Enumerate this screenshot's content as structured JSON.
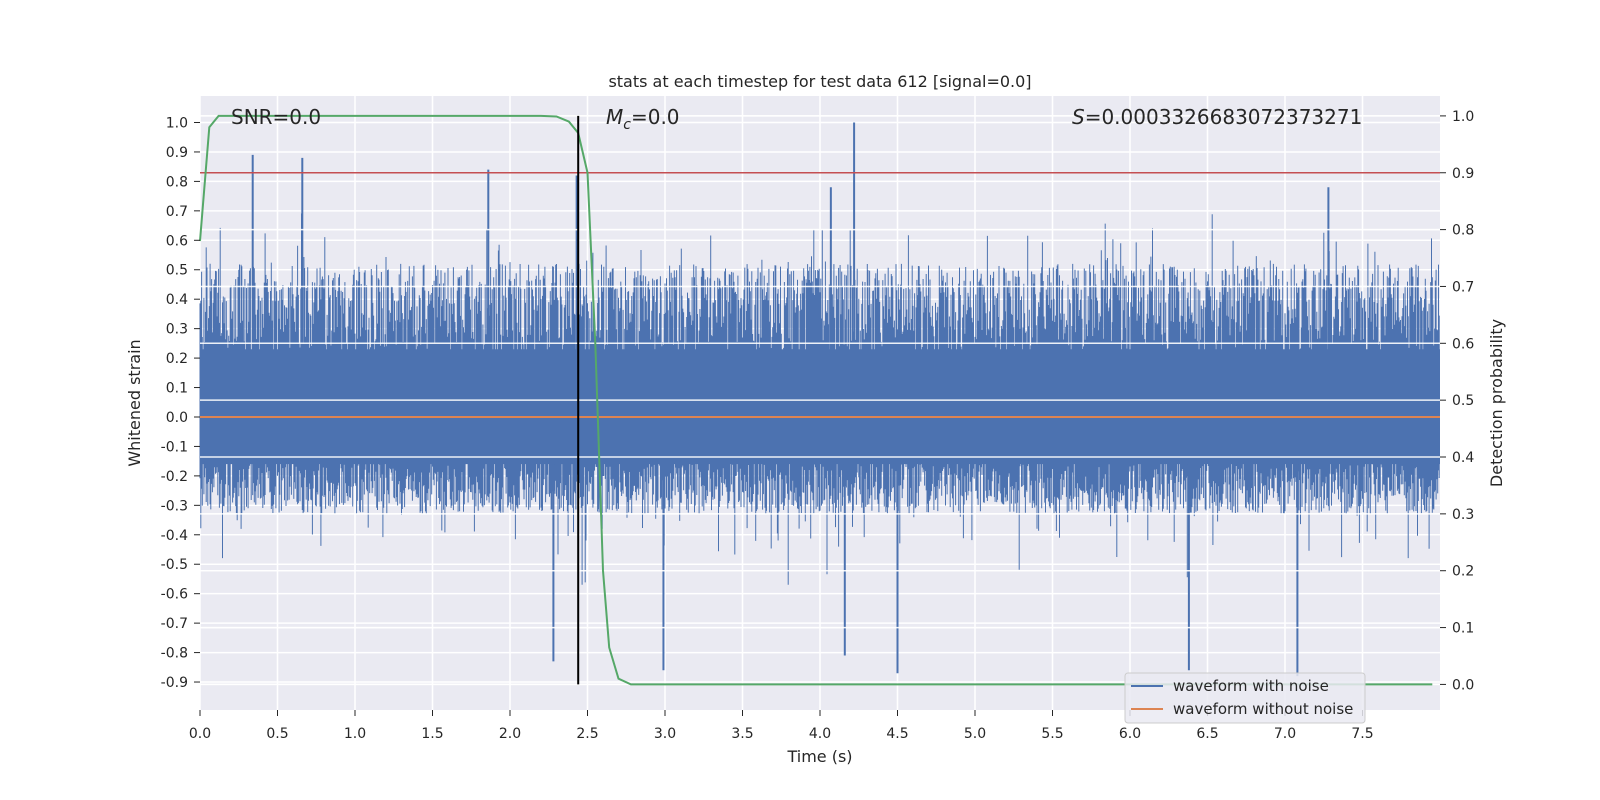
{
  "chart_data": {
    "type": "line",
    "title": "stats at each timestep for test data 612 [signal=0.0]",
    "xlabel": "Time (s)",
    "ylabel": "Whitened strain",
    "y2label": "Detection probability",
    "xlim": [
      0.0,
      8.0
    ],
    "ylim": [
      -0.995,
      1.09
    ],
    "y2lim": [
      -0.045,
      1.035
    ],
    "xticks": [
      "0.0",
      "0.5",
      "1.0",
      "1.5",
      "2.0",
      "2.5",
      "3.0",
      "3.5",
      "4.0",
      "4.5",
      "5.0",
      "5.5",
      "6.0",
      "6.5",
      "7.0",
      "7.5"
    ],
    "yticks": [
      "-0.9",
      "-0.8",
      "-0.7",
      "-0.6",
      "-0.5",
      "-0.4",
      "-0.3",
      "-0.2",
      "-0.1",
      "0.0",
      "0.1",
      "0.2",
      "0.3",
      "0.4",
      "0.5",
      "0.6",
      "0.7",
      "0.8",
      "0.9",
      "1.0"
    ],
    "y2ticks": [
      "0.0",
      "0.1",
      "0.2",
      "0.3",
      "0.4",
      "0.5",
      "0.6",
      "0.7",
      "0.8",
      "0.9",
      "1.0"
    ],
    "annotations": {
      "snr": "SNR=0.0",
      "mc_symbol": "M",
      "mc_sub": "c",
      "mc_value": "=0.0",
      "s_symbol": "S",
      "s_value": "=0.0003326683072373271"
    },
    "threshold": {
      "axis": "right",
      "value": 0.9,
      "color": "#c44e52"
    },
    "marker_time": 2.44,
    "series": [
      {
        "name": "waveform with noise",
        "axis": "left",
        "color": "#4c72b0",
        "kind": "noise",
        "typical_range": [
          -0.33,
          0.52
        ],
        "peaks": [
          {
            "t": 0.34,
            "v": 0.89
          },
          {
            "t": 0.66,
            "v": 0.88
          },
          {
            "t": 1.86,
            "v": 0.84
          },
          {
            "t": 2.43,
            "v": 0.82
          },
          {
            "t": 4.07,
            "v": 0.78
          },
          {
            "t": 4.22,
            "v": 1.0
          },
          {
            "t": 7.28,
            "v": 0.78
          },
          {
            "t": 2.28,
            "v": -0.83
          },
          {
            "t": 2.99,
            "v": -0.86
          },
          {
            "t": 4.5,
            "v": -0.87
          },
          {
            "t": 4.16,
            "v": -0.81
          },
          {
            "t": 6.38,
            "v": -0.86
          },
          {
            "t": 7.08,
            "v": -0.88
          }
        ]
      },
      {
        "name": "waveform without noise",
        "axis": "left",
        "color": "#dd8452",
        "x": [
          0.0,
          8.0
        ],
        "y": [
          0.0,
          0.0
        ]
      },
      {
        "name": "detection probability",
        "axis": "right",
        "color": "#55a868",
        "x": [
          0.0,
          0.06,
          0.12,
          0.2,
          0.4,
          1.0,
          1.6,
          2.0,
          2.2,
          2.3,
          2.38,
          2.44,
          2.5,
          2.55,
          2.6,
          2.64,
          2.7,
          2.78,
          2.9,
          3.2,
          5.0,
          7.0,
          7.95
        ],
        "y": [
          0.78,
          0.98,
          1.0,
          1.0,
          1.0,
          1.0,
          1.0,
          1.0,
          1.0,
          0.999,
          0.99,
          0.97,
          0.9,
          0.6,
          0.2,
          0.065,
          0.01,
          0.0,
          0.0,
          0.0,
          0.0,
          0.0,
          0.0
        ]
      }
    ],
    "legend": {
      "position": "lower-right",
      "entries": [
        {
          "label": "waveform with noise",
          "color": "#4c72b0"
        },
        {
          "label": "waveform without noise",
          "color": "#dd8452"
        }
      ]
    }
  }
}
